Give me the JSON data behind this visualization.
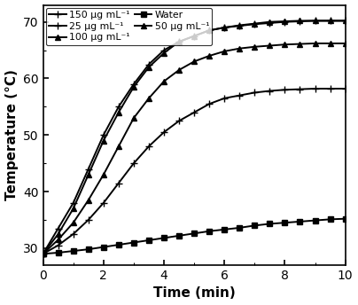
{
  "title": "",
  "xlabel": "Time (min)",
  "ylabel": "Temperature (°C)",
  "xlim": [
    0,
    10
  ],
  "ylim": [
    27,
    73
  ],
  "yticks": [
    30,
    40,
    50,
    60,
    70
  ],
  "xticks": [
    0,
    2,
    4,
    6,
    8,
    10
  ],
  "series": [
    {
      "label": "150 μg mL⁻¹",
      "marker": "+",
      "markevery": 1,
      "x": [
        0,
        0.5,
        1,
        1.5,
        2,
        2.5,
        3,
        3.5,
        4,
        4.5,
        5,
        5.5,
        6,
        6.5,
        7,
        7.5,
        8,
        8.5,
        9,
        9.5,
        10
      ],
      "y": [
        29,
        33.5,
        38,
        44,
        50,
        55,
        59,
        62.5,
        65,
        66.5,
        67.5,
        68.5,
        69,
        69.3,
        69.6,
        69.8,
        70,
        70.1,
        70.2,
        70.2,
        70.2
      ]
    },
    {
      "label": "25 μg mL⁻¹",
      "marker": "+",
      "markevery": 1,
      "x": [
        0,
        0.5,
        1,
        1.5,
        2,
        2.5,
        3,
        3.5,
        4,
        4.5,
        5,
        5.5,
        6,
        6.5,
        7,
        7.5,
        8,
        8.5,
        9,
        9.5,
        10
      ],
      "y": [
        29,
        30.5,
        32.5,
        35,
        38,
        41.5,
        45,
        48,
        50.5,
        52.5,
        54,
        55.5,
        56.5,
        57,
        57.5,
        57.8,
        58,
        58.1,
        58.2,
        58.2,
        58.2
      ]
    },
    {
      "label": "100 μg mL⁻¹",
      "marker": "^",
      "markevery": 1,
      "x": [
        0,
        0.5,
        1,
        1.5,
        2,
        2.5,
        3,
        3.5,
        4,
        4.5,
        5,
        5.5,
        6,
        6.5,
        7,
        7.5,
        8,
        8.5,
        9,
        9.5,
        10
      ],
      "y": [
        29,
        32.5,
        37,
        43,
        49,
        54,
        58.5,
        62,
        64.5,
        66.5,
        67.5,
        68.5,
        69,
        69.4,
        69.7,
        70,
        70.1,
        70.2,
        70.2,
        70.2,
        70.2
      ]
    },
    {
      "label": "Water",
      "marker": "s",
      "markevery": 1,
      "x": [
        0,
        0.5,
        1,
        1.5,
        2,
        2.5,
        3,
        3.5,
        4,
        4.5,
        5,
        5.5,
        6,
        6.5,
        7,
        7.5,
        8,
        8.5,
        9,
        9.5,
        10
      ],
      "y": [
        29,
        29.2,
        29.5,
        29.8,
        30.2,
        30.6,
        31,
        31.4,
        31.8,
        32.2,
        32.6,
        33,
        33.3,
        33.6,
        34,
        34.3,
        34.5,
        34.7,
        34.9,
        35.1,
        35.2
      ]
    },
    {
      "label": "50 μg mL⁻¹",
      "marker": "^",
      "markevery": 1,
      "x": [
        0,
        0.5,
        1,
        1.5,
        2,
        2.5,
        3,
        3.5,
        4,
        4.5,
        5,
        5.5,
        6,
        6.5,
        7,
        7.5,
        8,
        8.5,
        9,
        9.5,
        10
      ],
      "y": [
        29,
        31.5,
        34.5,
        38.5,
        43,
        48,
        53,
        56.5,
        59.5,
        61.5,
        63,
        64,
        64.8,
        65.3,
        65.6,
        65.8,
        66,
        66.1,
        66.2,
        66.2,
        66.2
      ]
    }
  ],
  "line_color": "#000000",
  "background_color": "#ffffff",
  "legend_rows": [
    [
      0,
      1
    ],
    [
      2,
      3
    ],
    [
      4
    ]
  ],
  "fontsize": 11,
  "tick_fontsize": 10,
  "markersize_plus": 6,
  "markersize_tri": 5,
  "markersize_sq": 4,
  "linewidth": 1.4
}
